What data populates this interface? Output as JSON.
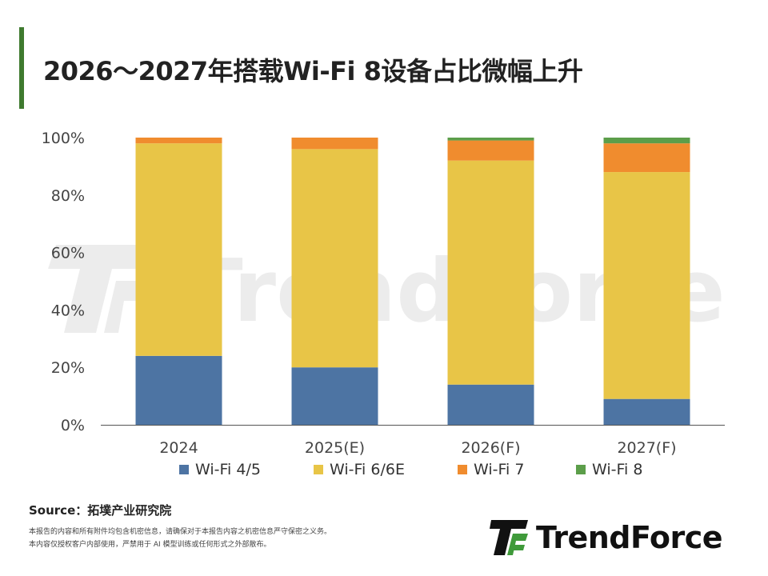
{
  "title": "2026～2027年搭载Wi-Fi 8设备占比微幅上升",
  "source": "Source：拓墣产业研究院",
  "disclaimer": [
    "本报告的内容和所有附件均包含机密信息，请确保对于本报告内容之机密信息严守保密之义务。",
    "本内容仅授权客户内部使用，严禁用于 AI 模型训练或任何形式之外部散布。"
  ],
  "logo_text": "TrendForce",
  "watermark_text": "TrendForce",
  "colors": {
    "wifi45": "#4d74a3",
    "wifi66e": "#e8c547",
    "wifi7": "#f08c2e",
    "wifi8": "#5c9e4a",
    "accent": "#3f7a2f"
  },
  "chart_data": {
    "type": "bar",
    "stacked": true,
    "categories": [
      "2024",
      "2025(E)",
      "2026(F)",
      "2027(F)"
    ],
    "series": [
      {
        "name": "Wi-Fi 4/5",
        "color": "#4d74a3",
        "values": [
          24,
          20,
          14,
          9
        ]
      },
      {
        "name": "Wi-Fi 6/6E",
        "color": "#e8c547",
        "values": [
          74,
          76,
          78,
          79
        ]
      },
      {
        "name": "Wi-Fi 7",
        "color": "#f08c2e",
        "values": [
          2,
          4,
          7,
          10
        ]
      },
      {
        "name": "Wi-Fi 8",
        "color": "#5c9e4a",
        "values": [
          0,
          0,
          1,
          2
        ]
      }
    ],
    "ylim": [
      0,
      100
    ],
    "yticks": [
      "0%",
      "20%",
      "40%",
      "60%",
      "80%",
      "100%"
    ],
    "ytick_values": [
      0,
      20,
      40,
      60,
      80,
      100
    ],
    "grid": false,
    "legend_position": "bottom"
  }
}
